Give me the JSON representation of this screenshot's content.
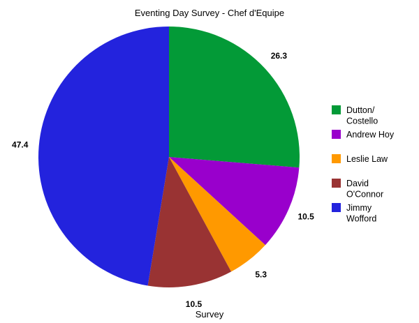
{
  "chart_data": {
    "type": "pie",
    "title": "Eventing Day Survey - Chef d'Equipe",
    "xlabel": "Survey",
    "legend_position": "right",
    "slices": [
      {
        "label": [
          "Dutton/",
          "Costello"
        ],
        "value": 26.3,
        "display": "26.3",
        "color": "#039a37"
      },
      {
        "label": [
          "Andrew Hoy"
        ],
        "value": 10.5,
        "display": "10.5",
        "color": "#9900cc"
      },
      {
        "label": [
          "Leslie Law"
        ],
        "value": 5.3,
        "display": "5.3",
        "color": "#ff9900"
      },
      {
        "label": [
          "David",
          "O'Connor"
        ],
        "value": 10.5,
        "display": "10.5",
        "color": "#993333"
      },
      {
        "label": [
          "Jimmy",
          "Wofford"
        ],
        "value": 47.4,
        "display": "47.4",
        "color": "#2323dd"
      }
    ]
  }
}
